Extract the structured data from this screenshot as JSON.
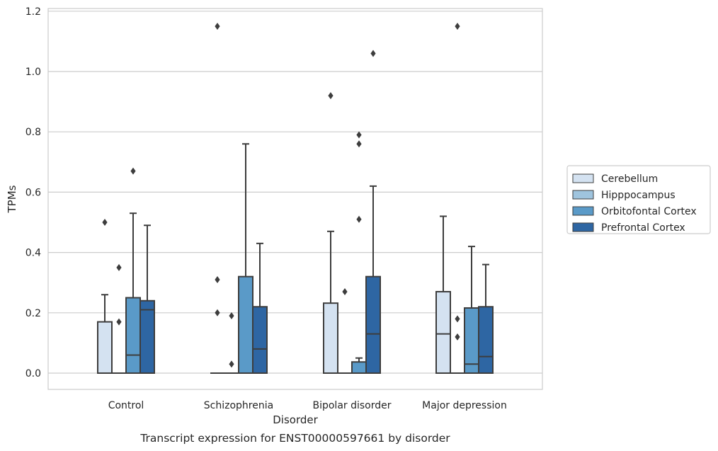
{
  "chart_data": {
    "type": "boxplot",
    "caption": "Transcript expression for ENST00000597661 by disorder",
    "xlabel": "Disorder",
    "ylabel": "TPMs",
    "ylim": [
      -0.055,
      1.21
    ],
    "yticks": [
      0.0,
      0.2,
      0.4,
      0.6,
      0.8,
      1.0,
      1.2
    ],
    "ytick_labels": [
      "0.0",
      "0.2",
      "0.4",
      "0.6",
      "0.8",
      "1.0",
      "1.2"
    ],
    "grid": "horizontal",
    "legend_position": "right",
    "categories": [
      "Control",
      "Schizophrenia",
      "Bipolar disorder",
      "Major depression"
    ],
    "series": [
      {
        "name": "Cerebellum",
        "color": "#d4e2f1",
        "boxes": [
          {
            "min": 0.0,
            "q1": 0.0,
            "median": 0.0,
            "q3": 0.17,
            "max": 0.26,
            "outliers": [
              0.5
            ]
          },
          {
            "min": 0.0,
            "q1": 0.0,
            "median": 0.0,
            "q3": 0.0,
            "max": 0.0,
            "outliers": [
              1.15,
              0.31,
              0.2
            ]
          },
          {
            "min": 0.0,
            "q1": 0.0,
            "median": 0.0,
            "q3": 0.232,
            "max": 0.47,
            "outliers": [
              0.92
            ]
          },
          {
            "min": 0.0,
            "q1": 0.0,
            "median": 0.13,
            "q3": 0.27,
            "max": 0.52,
            "outliers": []
          }
        ]
      },
      {
        "name": "Hipppocampus",
        "color": "#9fc4de",
        "boxes": [
          {
            "min": 0.0,
            "q1": 0.0,
            "median": 0.0,
            "q3": 0.0,
            "max": 0.0,
            "outliers": [
              0.35,
              0.17
            ]
          },
          {
            "min": 0.0,
            "q1": 0.0,
            "median": 0.0,
            "q3": 0.0,
            "max": 0.0,
            "outliers": [
              0.19,
              0.03
            ]
          },
          {
            "min": 0.0,
            "q1": 0.0,
            "median": 0.0,
            "q3": 0.0,
            "max": 0.0,
            "outliers": [
              0.27
            ]
          },
          {
            "min": 0.0,
            "q1": 0.0,
            "median": 0.0,
            "q3": 0.0,
            "max": 0.0,
            "outliers": [
              1.15,
              0.18,
              0.12
            ]
          }
        ]
      },
      {
        "name": "Orbitofontal Cortex",
        "color": "#5a9ac8",
        "boxes": [
          {
            "min": 0.0,
            "q1": 0.0,
            "median": 0.06,
            "q3": 0.25,
            "max": 0.53,
            "outliers": [
              0.67
            ]
          },
          {
            "min": 0.0,
            "q1": 0.0,
            "median": 0.0,
            "q3": 0.32,
            "max": 0.76,
            "outliers": []
          },
          {
            "min": 0.0,
            "q1": 0.0,
            "median": 0.0,
            "q3": 0.037,
            "max": 0.05,
            "outliers": [
              0.79,
              0.76,
              0.51
            ]
          },
          {
            "min": 0.0,
            "q1": 0.0,
            "median": 0.03,
            "q3": 0.216,
            "max": 0.42,
            "outliers": []
          }
        ]
      },
      {
        "name": "Prefrontal Cortex",
        "color": "#2e66a3",
        "boxes": [
          {
            "min": 0.0,
            "q1": 0.0,
            "median": 0.21,
            "q3": 0.24,
            "max": 0.49,
            "outliers": []
          },
          {
            "min": 0.0,
            "q1": 0.0,
            "median": 0.08,
            "q3": 0.22,
            "max": 0.43,
            "outliers": []
          },
          {
            "min": 0.0,
            "q1": 0.0,
            "median": 0.13,
            "q3": 0.32,
            "max": 0.62,
            "outliers": [
              1.06
            ]
          },
          {
            "min": 0.0,
            "q1": 0.0,
            "median": 0.055,
            "q3": 0.22,
            "max": 0.36,
            "outliers": []
          }
        ]
      }
    ]
  }
}
